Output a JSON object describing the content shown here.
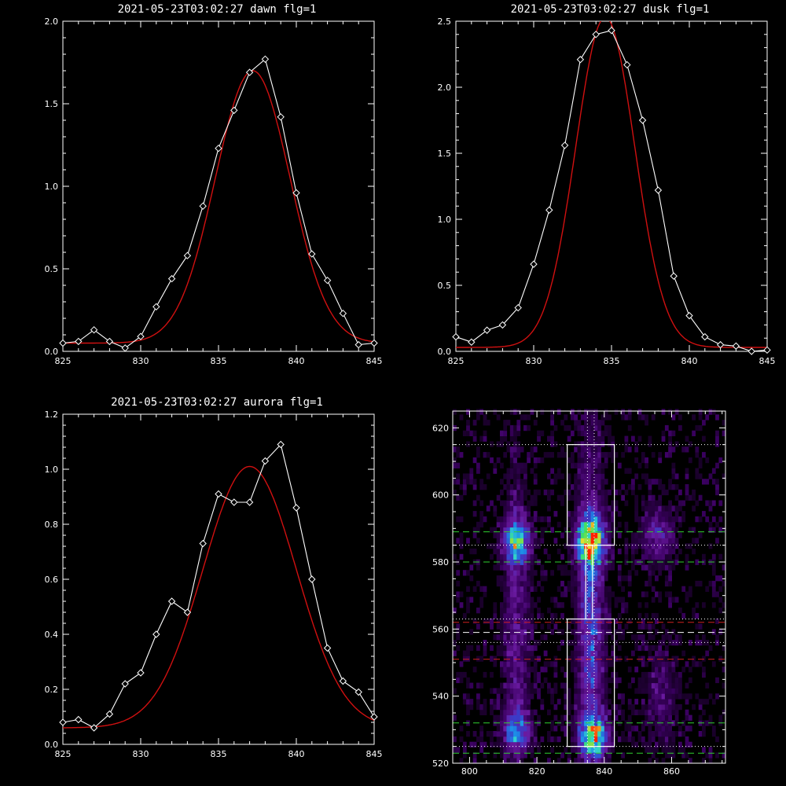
{
  "chart_data": [
    {
      "type": "line",
      "title": "2021-05-23T03:02:27 dawn flg=1",
      "xlim": [
        825,
        845
      ],
      "ylim": [
        0,
        2.0
      ],
      "xticks": [
        825,
        830,
        835,
        840,
        845
      ],
      "yticks": [
        0.0,
        0.5,
        1.0,
        1.5,
        2.0
      ],
      "ytick_labels": [
        "0.0",
        "0.5",
        "1.0",
        "1.5",
        "2.0"
      ],
      "observed": {
        "x": [
          825,
          826,
          827,
          828,
          829,
          830,
          831,
          832,
          833,
          834,
          835,
          836,
          837,
          838,
          839,
          840,
          841,
          842,
          843,
          844,
          845
        ],
        "y": [
          0.05,
          0.06,
          0.13,
          0.06,
          0.02,
          0.09,
          0.27,
          0.44,
          0.58,
          0.88,
          1.23,
          1.46,
          1.69,
          1.77,
          1.42,
          0.96,
          0.59,
          0.43,
          0.23,
          0.04,
          0.05
        ]
      },
      "fit": {
        "model": "gaussian",
        "amplitude": 1.65,
        "center": 837.2,
        "sigma": 2.4,
        "baseline": 0.05
      }
    },
    {
      "type": "line",
      "title": "2021-05-23T03:02:27 dusk flg=1",
      "xlim": [
        825,
        845
      ],
      "ylim": [
        0,
        2.5
      ],
      "xticks": [
        825,
        830,
        835,
        840,
        845
      ],
      "yticks": [
        0.0,
        0.5,
        1.0,
        1.5,
        2.0,
        2.5
      ],
      "ytick_labels": [
        "0.0",
        "0.5",
        "1.0",
        "1.5",
        "2.0",
        "2.5"
      ],
      "observed": {
        "x": [
          825,
          826,
          827,
          828,
          829,
          830,
          831,
          832,
          833,
          834,
          835,
          836,
          837,
          838,
          839,
          840,
          841,
          842,
          843,
          844,
          845
        ],
        "y": [
          0.11,
          0.07,
          0.16,
          0.2,
          0.33,
          0.66,
          1.07,
          1.56,
          2.21,
          2.4,
          2.43,
          2.17,
          1.75,
          1.22,
          0.57,
          0.27,
          0.11,
          0.05,
          0.04,
          0.0,
          0.01
        ]
      },
      "fit": {
        "model": "gaussian",
        "amplitude": 2.5,
        "center": 834.6,
        "sigma": 1.9,
        "baseline": 0.03
      }
    },
    {
      "type": "line",
      "title": "2021-05-23T03:02:27 aurora flg=1",
      "xlim": [
        825,
        845
      ],
      "ylim": [
        0,
        1.2
      ],
      "xticks": [
        825,
        830,
        835,
        840,
        845
      ],
      "yticks": [
        0.0,
        0.2,
        0.4,
        0.6,
        0.8,
        1.0,
        1.2
      ],
      "ytick_labels": [
        "0.0",
        "0.2",
        "0.4",
        "0.6",
        "0.8",
        "1.0",
        "1.2"
      ],
      "observed": {
        "x": [
          825,
          826,
          827,
          828,
          829,
          830,
          831,
          832,
          833,
          834,
          835,
          836,
          837,
          838,
          839,
          840,
          841,
          842,
          843,
          844,
          845
        ],
        "y": [
          0.08,
          0.09,
          0.06,
          0.11,
          0.22,
          0.26,
          0.4,
          0.52,
          0.48,
          0.73,
          0.91,
          0.88,
          0.88,
          1.03,
          1.09,
          0.86,
          0.6,
          0.35,
          0.23,
          0.19,
          0.1
        ]
      },
      "fit": {
        "model": "gaussian",
        "amplitude": 0.95,
        "center": 837.0,
        "sigma": 3.0,
        "baseline": 0.06
      }
    },
    {
      "type": "heatmap",
      "title": "",
      "xlim": [
        795,
        876
      ],
      "ylim": [
        520,
        625
      ],
      "xticks": [
        800,
        820,
        840,
        860
      ],
      "yticks": [
        520,
        540,
        560,
        580,
        600,
        620
      ],
      "colormap": [
        "#000000",
        "#3a0060",
        "#6a1aa0",
        "#3a3cc8",
        "#1c8ae8",
        "#30d0d0",
        "#40e060",
        "#e0e030",
        "#ff2000"
      ],
      "sources": [
        {
          "x": 814,
          "y": 586,
          "peak": 0.62,
          "sx": 2.5,
          "sy": 4.0
        },
        {
          "x": 814,
          "y": 530,
          "peak": 0.45,
          "sx": 2.5,
          "sy": 3.5
        },
        {
          "x": 814,
          "y": 560,
          "peak": 0.18,
          "sx": 2.5,
          "sy": 30.0
        },
        {
          "x": 836,
          "y": 586,
          "peak": 1.0,
          "sx": 2.5,
          "sy": 4.5
        },
        {
          "x": 837,
          "y": 528,
          "peak": 0.85,
          "sx": 2.5,
          "sy": 3.5
        },
        {
          "x": 836,
          "y": 560,
          "peak": 0.32,
          "sx": 2.5,
          "sy": 35.0
        },
        {
          "x": 856,
          "y": 588,
          "peak": 0.25,
          "sx": 3.0,
          "sy": 5.0
        },
        {
          "x": 857,
          "y": 540,
          "peak": 0.12,
          "sx": 3.0,
          "sy": 10.0
        }
      ],
      "boxes": [
        {
          "x0": 829,
          "x1": 843,
          "y0": 585,
          "y1": 615
        },
        {
          "x0": 829,
          "x1": 843,
          "y0": 525,
          "y1": 563
        },
        {
          "x0": 834.5,
          "x1": 836.5,
          "y0": 563,
          "y1": 585
        }
      ],
      "dotted_vlines": [
        835,
        837
      ],
      "dotted_hlines": [
        615,
        585,
        563,
        556,
        525
      ],
      "green_dashed_hlines": [
        589,
        580,
        532,
        523
      ],
      "red_dashed_hlines": [
        551,
        562
      ],
      "white_dashed_hlines": [
        559
      ]
    }
  ],
  "colors": {
    "observed": "#ffffff",
    "fit": "#d01010",
    "frame": "#ffffff",
    "green_dash": "#30d030",
    "red_dash": "#d02020",
    "dotted": "#ffffff"
  }
}
